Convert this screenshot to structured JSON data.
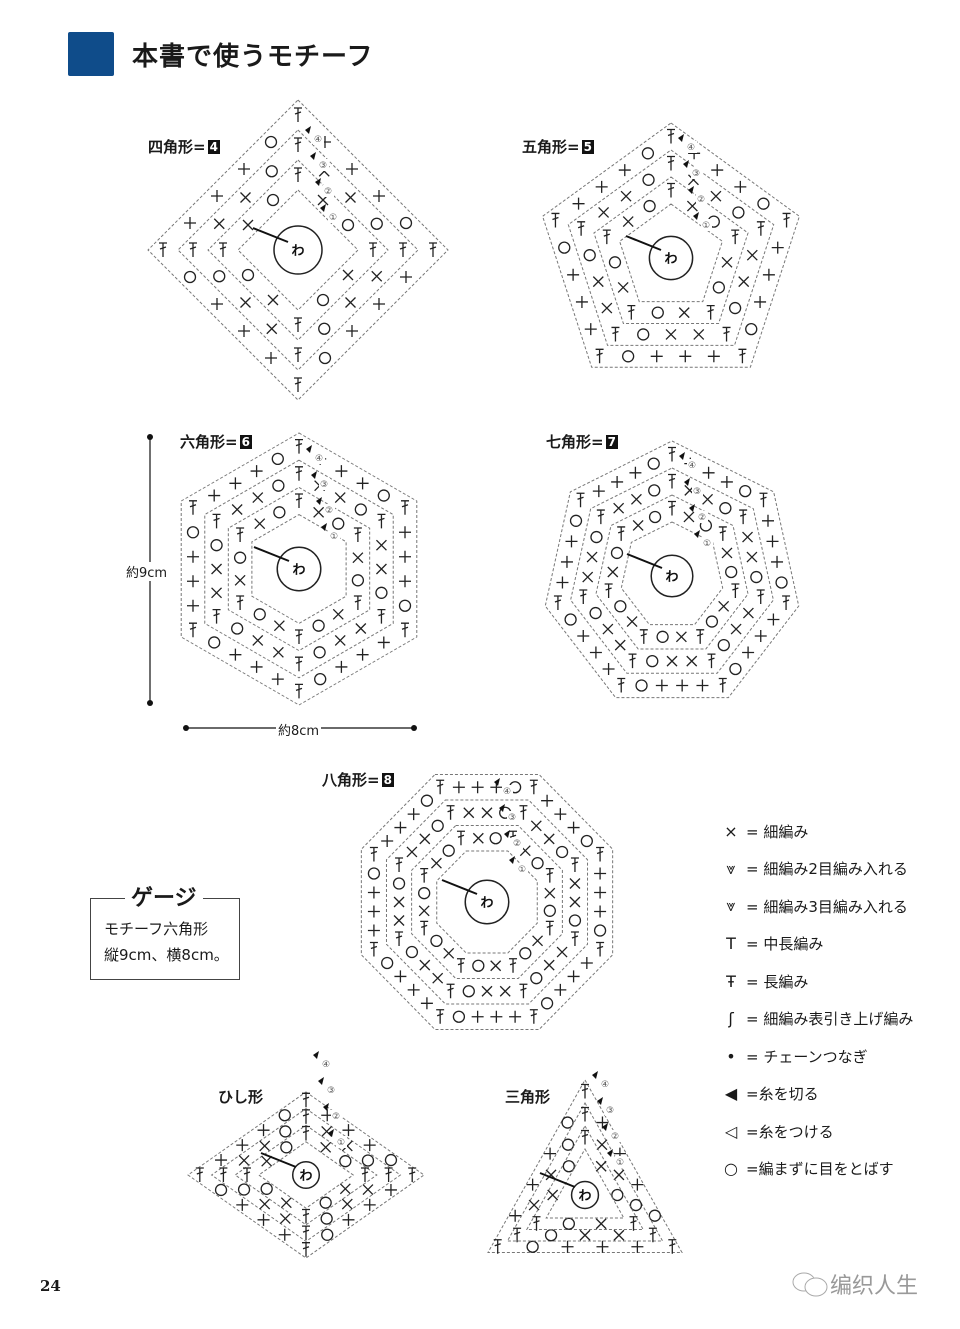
{
  "header": {
    "title": "本書で使うモチーフ",
    "accent_color": "#0f4c8a"
  },
  "center_mark": "わ",
  "motifs": [
    {
      "id": "square",
      "label": "四角形=",
      "number": "4",
      "sides": 4
    },
    {
      "id": "pentagon",
      "label": "五角形=",
      "number": "5",
      "sides": 5
    },
    {
      "id": "hexagon",
      "label": "六角形=",
      "number": "6",
      "sides": 6
    },
    {
      "id": "heptagon",
      "label": "七角形=",
      "number": "7",
      "sides": 7
    },
    {
      "id": "octagon",
      "label": "八角形=",
      "number": "8",
      "sides": 8
    },
    {
      "id": "rhombus",
      "label": "ひし形",
      "number": "",
      "sides": 4
    },
    {
      "id": "triangle",
      "label": "三角形",
      "number": "",
      "sides": 3
    }
  ],
  "round_numbers": [
    "①",
    "②",
    "③",
    "④"
  ],
  "dimensions": {
    "height": "約9cm",
    "width": "約8cm"
  },
  "gauge": {
    "title": "ゲージ",
    "line1": "モチーフ六角形",
    "line2": "縦9cm、横8cm。"
  },
  "legend": [
    {
      "icon": "single-crochet-icon",
      "symbol": "×",
      "text": "= 細編み"
    },
    {
      "icon": "sc2-increase-icon",
      "symbol": "⩔",
      "text": "= 細編み2目編み入れる"
    },
    {
      "icon": "sc3-increase-icon",
      "symbol": "⩔",
      "text": "= 細編み3目編み入れる"
    },
    {
      "icon": "half-double-crochet-icon",
      "symbol": "T",
      "text": "= 中長編み"
    },
    {
      "icon": "double-crochet-icon",
      "symbol": "Ŧ",
      "text": "= 長編み"
    },
    {
      "icon": "front-post-sc-icon",
      "symbol": "ʃ",
      "text": "= 細編み表引き上げ編み"
    },
    {
      "icon": "slip-stitch-dot-icon",
      "symbol": "•",
      "text": "= チェーンつなぎ"
    },
    {
      "icon": "cut-yarn-icon",
      "symbol": "◀",
      "text": "=糸を切る"
    },
    {
      "icon": "join-yarn-icon",
      "symbol": "◁",
      "text": "=糸をつける"
    },
    {
      "icon": "skip-stitch-circle-icon",
      "symbol": "○",
      "text": "=編まずに目をとばす"
    }
  ],
  "page_number": "24",
  "watermark": "编织人生"
}
